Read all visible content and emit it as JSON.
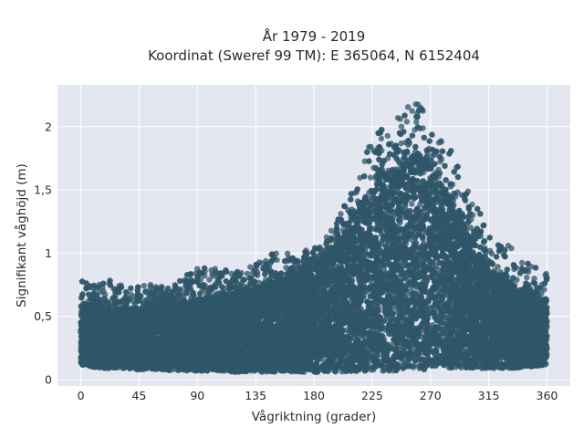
{
  "chart_data": {
    "type": "scatter",
    "title_lines": [
      "År 1979 - 2019",
      "Koordinat (Sweref 99 TM): E 365064, N 6152404"
    ],
    "xlabel": "Vågriktning (grader)",
    "ylabel": "Signifikant våghöjd (m)",
    "xlim": [
      -18,
      378
    ],
    "ylim": [
      -0.05,
      2.33
    ],
    "x_ticks": [
      0,
      45,
      90,
      135,
      180,
      225,
      270,
      315,
      360
    ],
    "x_tick_labels": [
      "0",
      "45",
      "90",
      "135",
      "180",
      "225",
      "270",
      "315",
      "360"
    ],
    "y_ticks": [
      0,
      0.5,
      1,
      1.5,
      2
    ],
    "y_tick_labels": [
      "0",
      "0,5",
      "1",
      "1,5",
      "2"
    ],
    "grid": true,
    "background": "#e5e7f0",
    "marker_color": "#2f5568",
    "envelope": {
      "x": [
        0,
        10,
        20,
        30,
        45,
        60,
        75,
        90,
        105,
        120,
        135,
        150,
        165,
        180,
        195,
        210,
        225,
        240,
        255,
        265,
        270,
        280,
        290,
        300,
        315,
        330,
        345,
        360
      ],
      "low": [
        0.12,
        0.1,
        0.09,
        0.09,
        0.08,
        0.08,
        0.07,
        0.07,
        0.07,
        0.06,
        0.06,
        0.06,
        0.06,
        0.06,
        0.06,
        0.06,
        0.07,
        0.07,
        0.08,
        0.08,
        0.09,
        0.09,
        0.09,
        0.09,
        0.09,
        0.09,
        0.1,
        0.12
      ],
      "dense_high": [
        0.58,
        0.56,
        0.55,
        0.56,
        0.56,
        0.58,
        0.6,
        0.63,
        0.66,
        0.68,
        0.72,
        0.77,
        0.82,
        0.9,
        1.03,
        1.25,
        1.52,
        1.68,
        1.75,
        1.73,
        1.7,
        1.55,
        1.3,
        1.08,
        0.88,
        0.75,
        0.68,
        0.62
      ],
      "max_high": [
        0.85,
        0.8,
        0.79,
        0.76,
        0.74,
        0.76,
        0.78,
        0.9,
        0.88,
        0.85,
        0.95,
        1.03,
        0.98,
        1.05,
        1.22,
        1.52,
        1.92,
        2.05,
        2.2,
        2.18,
        2.1,
        1.95,
        1.72,
        1.47,
        1.2,
        1.08,
        0.92,
        0.86
      ]
    },
    "point_count": 19000
  }
}
